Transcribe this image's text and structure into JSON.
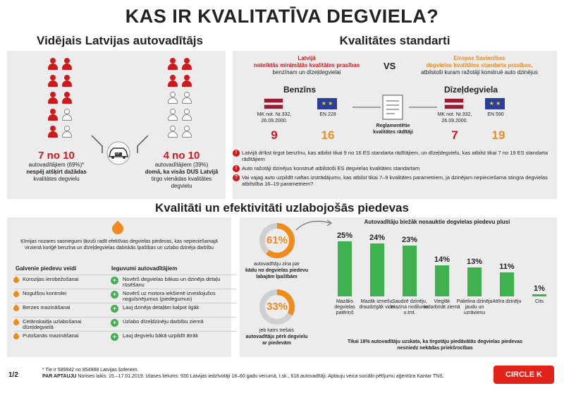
{
  "title": "KAS IR KVALITATĪVA DEGVIELA?",
  "left_section": {
    "heading": "Vidējais Latvijas autovadītājs",
    "car_badge": "LV",
    "left_stat": {
      "ratio": "7 no 10",
      "line1": "autovadītājiem (69%)*",
      "line2": "nespēj atšķirt dažādas",
      "line3": "kvalitātes degvielu"
    },
    "right_stat": {
      "ratio": "4 no 10",
      "line1": "autovadītājiem (39%)",
      "line2": "domā, ka visās DUS Latvijā",
      "line3": "tirgo vienādas kvalitātes",
      "line4": "degvielu"
    }
  },
  "right_section": {
    "heading": "Kvalitātes standarti",
    "lv_title1": "Latvijā",
    "lv_title2": "noteiktās minimālās kvalitātes prasības",
    "lv_sub": "benzīnam un dīzeļdegvielai",
    "vs": "VS",
    "eu_title1": "Eiropas Savienības",
    "eu_title2": "degvielas kvalitātes standarta prasības,",
    "eu_sub": "atbilstoši kuram ražotāji konstruē auto dzinējus",
    "benzins": "Benzīns",
    "diesel": "Dīzeļdegviela",
    "mk_note1": "MK not. Nr.332,",
    "mk_note2": "26.09.2000.",
    "en228": "EN 228",
    "en590": "EN 590",
    "doc_label1": "Reglamentētie",
    "doc_label2": "kvalitātes rādītāji",
    "benz_lv": "9",
    "benz_eu": "16",
    "dies_lv": "7",
    "dies_eu": "19",
    "bullet1": "Latvijā drīkst tirgot benzīnu, kas atbilst tikai 9 no 16 ES standarta rādītājiem, un dīzeļdegvielu, kas atbilst tikai 7 no 19 ES standarta rādītājiem",
    "bullet2": "Auto ražotāji dzinējus konstruē atbilstoši ES degvielas kvalitātes standartam",
    "bullet3": "Vai vajag auto uzpildīt naftas izstrādājumu, kas atbilst tikai 7–9 kvalitātes parametriem, ja dzinējam nepieciešama stingra degvielas atbilstība 16–19 parametriem?"
  },
  "bottom": {
    "heading": "Kvalitāti un efektivitāti uzlabojošās piedevas",
    "intro": "Ķīmijas nozares sasniegumi ļāvuši radīt efektīvas degvielas piedevas, kas nepieciešamajā virzienā koriģē benzīna un dīzeļdegvielas dabiskās īpašības un uzlabo dzinēja darbību",
    "col1_header": "Galvenie piedevu veidi",
    "col2_header": "Ieguvumi autovadītājiem",
    "rows": [
      {
        "type": "Korozijas ierobežošanai",
        "benefit": "Novērš degvielas bākas un dzinēja detaļu rūsēšanu"
      },
      {
        "type": "Nogulšņu kontrolei",
        "benefit": "Novērš uz motora iekšienē izveidojušos nogulsnējumus (piedegumus)"
      },
      {
        "type": "Berzes mazināšanai",
        "benefit": "Ļauj dzinēja detaļām kalpot ilgāk"
      },
      {
        "type": "Cetānskaitļa uzlabošanai dīzeļdegvielā",
        "benefit": "Uzlabo dīzeļdzinēju darbību ziemā"
      },
      {
        "type": "Putošanās mazināšanai",
        "benefit": "Ļauj degvielu bākā uzpildīt ātrāk"
      }
    ],
    "ring1": {
      "value": "61%",
      "l1": "autovadītāju zina par",
      "l2": "kādu no degvielas piedevu",
      "l3": "labajām īpašībām"
    },
    "ring2": {
      "value": "33%",
      "l1": "jeb katrs trešais",
      "l2": "autovadītājs pērk degvielu",
      "l3": "ar piedevām"
    },
    "chart_title": "Autovadītāju biežāk nosauktie degvielas piedevu plusi",
    "chart_footer1": "Tikai 18% autovadītāju uzskata, ka tirgotāju piedāvātās degvielas piedevas",
    "chart_footer2": "nesniedz nekādas priekšrocības"
  },
  "chart_data": {
    "type": "bar",
    "title": "Autovadītāju biežāk nosauktie degvielas piedevu plusi",
    "categories": [
      "Mazāks degvielas patēriņš",
      "Mazāk izmešu, draudzīgāk videi",
      "Saudzē dzinēju, mazina nodilumu u.tml.",
      "Vieglāk iedarbināt ziemā",
      "Palielina dzinēja jaudu un uzrāvienu",
      "Attīra dzinēju",
      "Cits"
    ],
    "values": [
      25,
      24,
      23,
      14,
      13,
      11,
      1
    ],
    "value_labels": [
      "25%",
      "24%",
      "23%",
      "14%",
      "13%",
      "11%",
      "1%"
    ],
    "ylim": [
      0,
      25
    ],
    "color": "#3fb24f"
  },
  "footer": {
    "page": "1/2",
    "note1": "* Tie ir 589942 no 854988 Latvijas šoferiem.",
    "note2_bold": "PAR APTAUJU",
    "note2": " Norises laiks: 15.–17.01.2019. Izlases lielums: 930 Latvijas iedzīvotāji 18–60 gadu vecumā, t.sk., 618 autovadītāji. Aptauju veica sociālo pētījumu aģentūra Kantar TNS.",
    "brand": "CIRCLE K"
  }
}
